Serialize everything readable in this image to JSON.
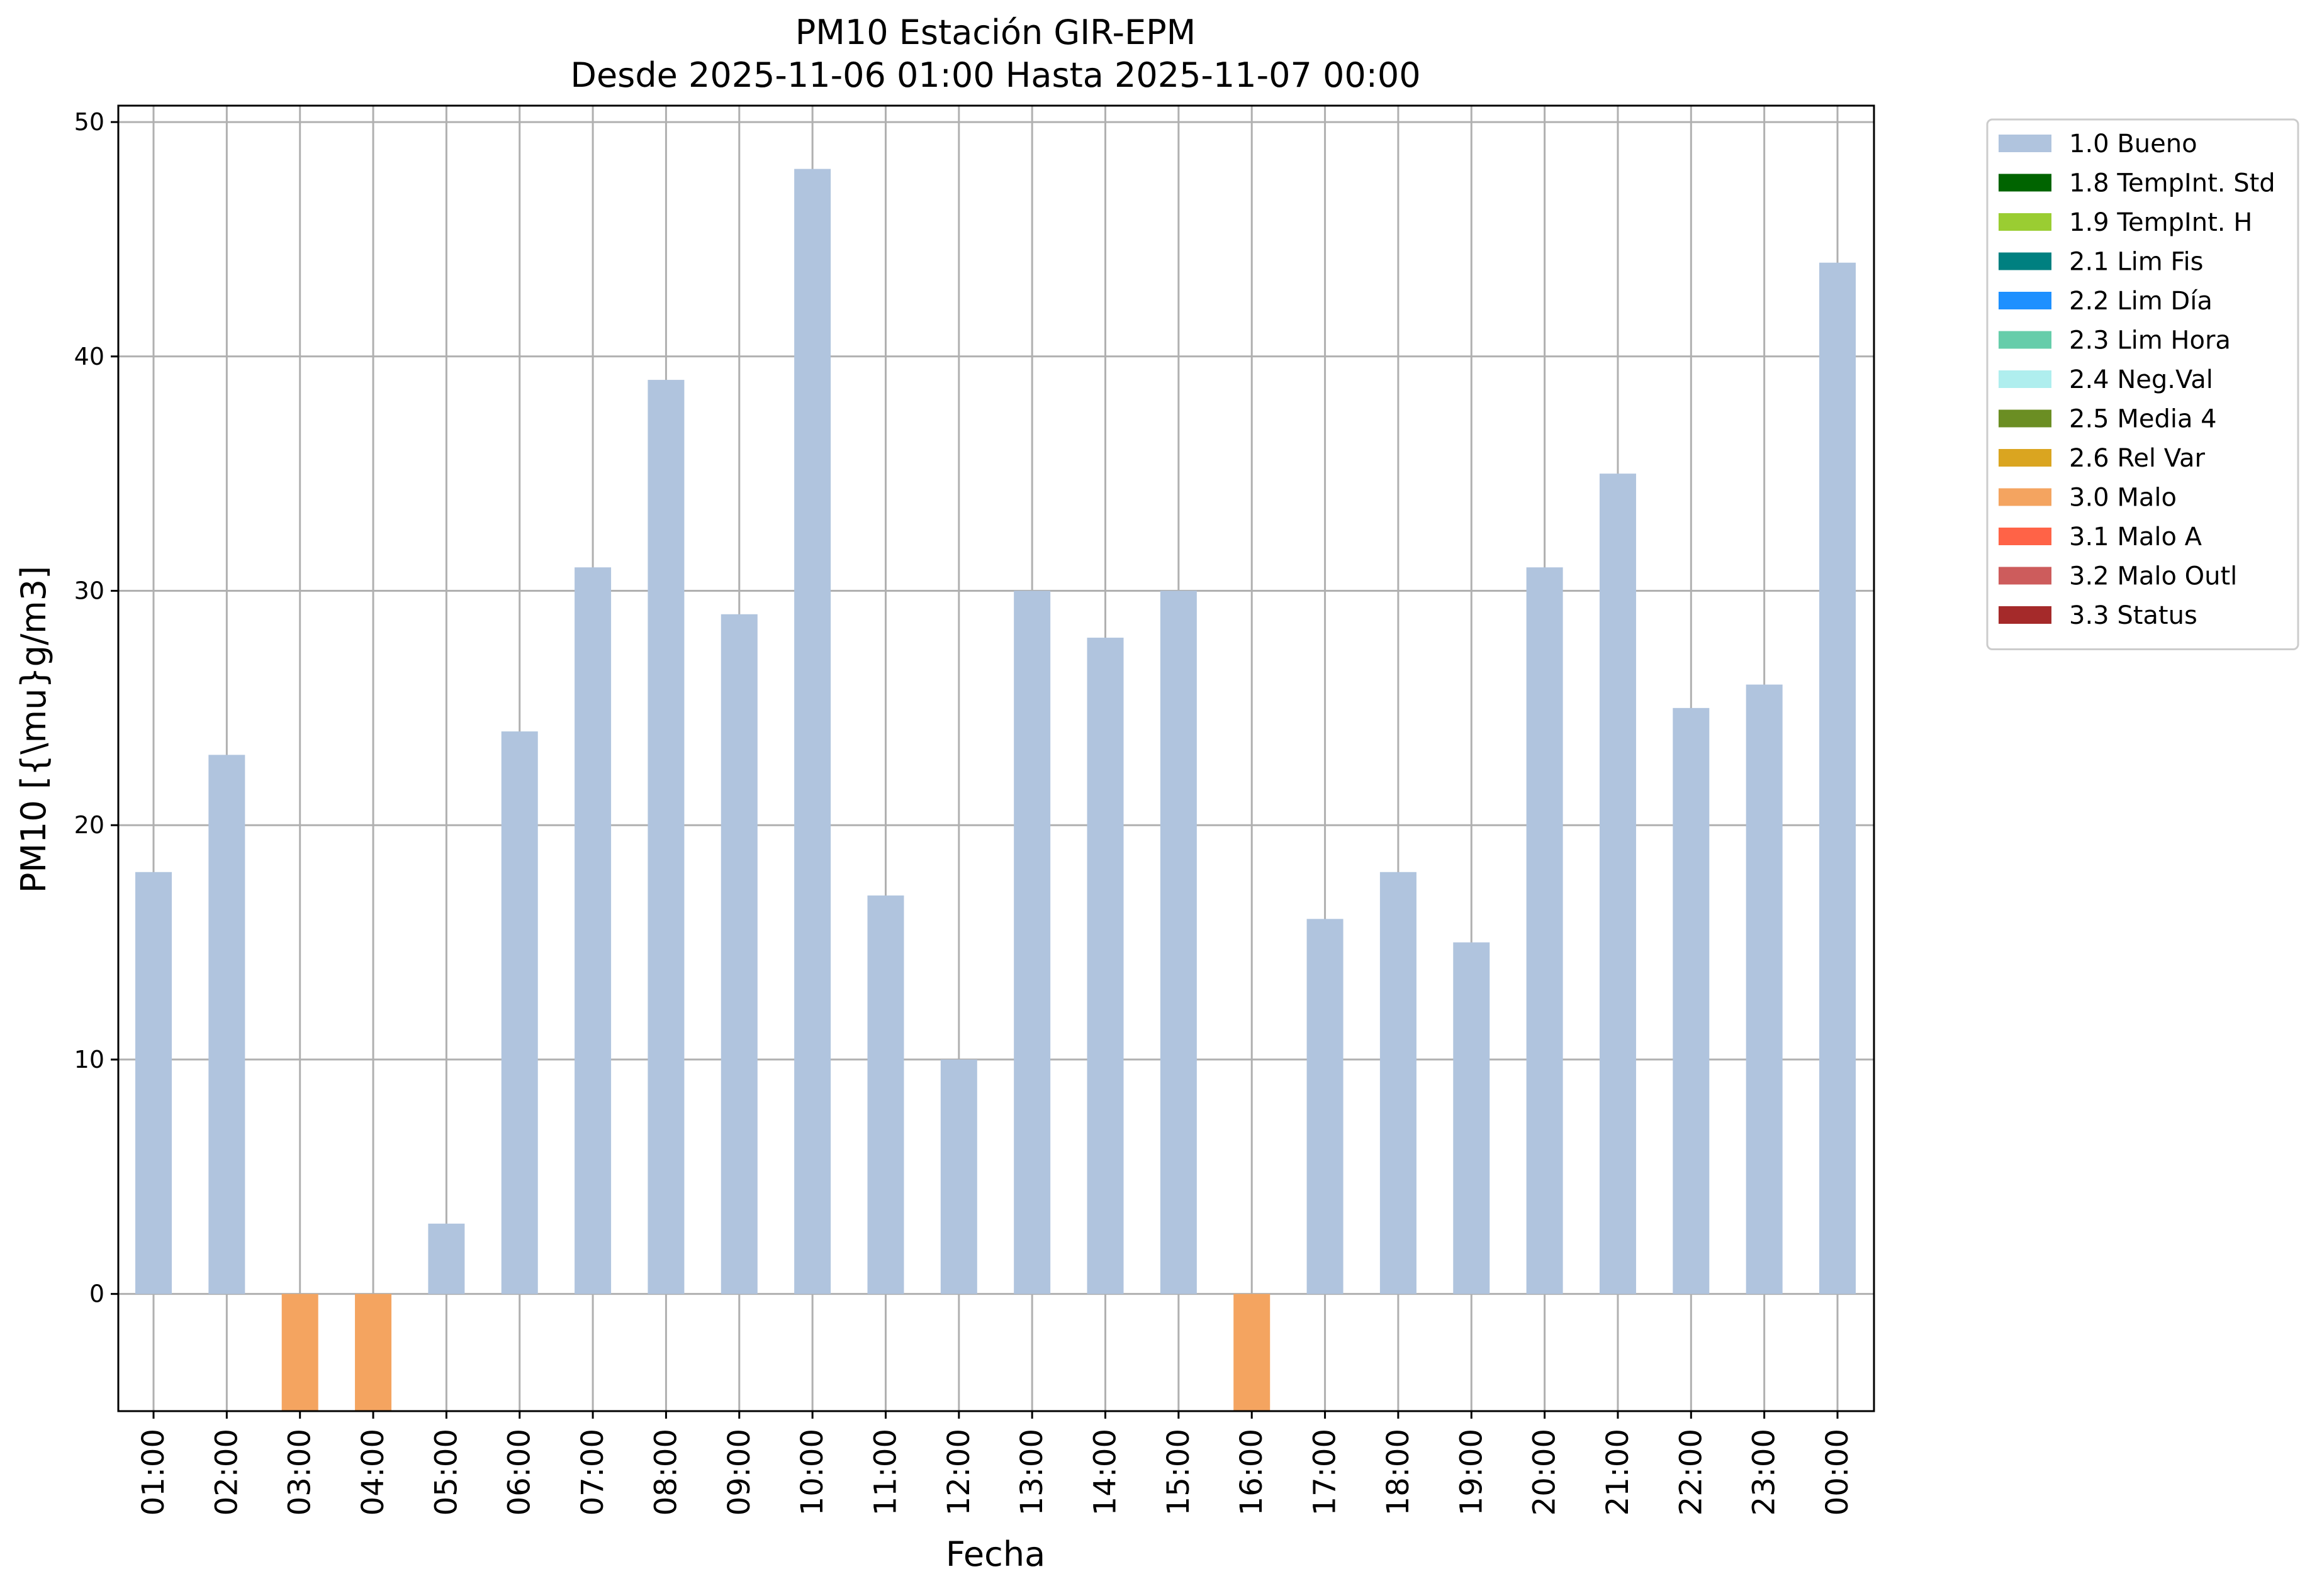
{
  "chart_data": {
    "type": "bar",
    "title": "PM10 Estación GIR-EPM",
    "subtitle": "Desde 2025-11-06 01:00 Hasta 2025-11-07 00:00",
    "xlabel": "Fecha",
    "ylabel": "PM10 [{\\mu}g/m3]",
    "ylim": [
      -5,
      50.7
    ],
    "yticks": [
      0,
      10,
      20,
      30,
      40,
      50
    ],
    "grid": true,
    "legend_position": "outside-top-right",
    "categories": [
      "01:00",
      "02:00",
      "03:00",
      "04:00",
      "05:00",
      "06:00",
      "07:00",
      "08:00",
      "09:00",
      "10:00",
      "11:00",
      "12:00",
      "13:00",
      "14:00",
      "15:00",
      "16:00",
      "17:00",
      "18:00",
      "19:00",
      "20:00",
      "21:00",
      "22:00",
      "23:00",
      "00:00"
    ],
    "values": [
      18,
      23,
      -5,
      -5,
      3,
      24,
      31,
      39,
      29,
      48,
      17,
      10,
      30,
      28,
      30,
      -5,
      16,
      18,
      15,
      31,
      35,
      25,
      26,
      44
    ],
    "flags": [
      "1.0 Bueno",
      "1.0 Bueno",
      "3.0 Malo",
      "3.0 Malo",
      "1.0 Bueno",
      "1.0 Bueno",
      "1.0 Bueno",
      "1.0 Bueno",
      "1.0 Bueno",
      "1.0 Bueno",
      "1.0 Bueno",
      "1.0 Bueno",
      "1.0 Bueno",
      "1.0 Bueno",
      "1.0 Bueno",
      "3.0 Malo",
      "1.0 Bueno",
      "1.0 Bueno",
      "1.0 Bueno",
      "1.0 Bueno",
      "1.0 Bueno",
      "1.0 Bueno",
      "1.0 Bueno",
      "1.0 Bueno"
    ],
    "legend": [
      {
        "label": "1.0 Bueno",
        "color": "#b0c4de"
      },
      {
        "label": "1.8 TempInt. Std",
        "color": "#006400"
      },
      {
        "label": "1.9 TempInt. H",
        "color": "#9acd32"
      },
      {
        "label": "2.1 Lim Fis",
        "color": "#008080"
      },
      {
        "label": "2.2 Lim Día",
        "color": "#1e90ff"
      },
      {
        "label": "2.3 Lim Hora",
        "color": "#66cdaa"
      },
      {
        "label": "2.4 Neg.Val",
        "color": "#afeeee"
      },
      {
        "label": "2.5 Media 4",
        "color": "#6b8e23"
      },
      {
        "label": "2.6 Rel Var",
        "color": "#daa520"
      },
      {
        "label": "3.0 Malo",
        "color": "#f4a460"
      },
      {
        "label": "3.1 Malo A",
        "color": "#ff6347"
      },
      {
        "label": "3.2 Malo Outl",
        "color": "#cd5c5c"
      },
      {
        "label": "3.3 Status",
        "color": "#a52a2a"
      }
    ]
  }
}
